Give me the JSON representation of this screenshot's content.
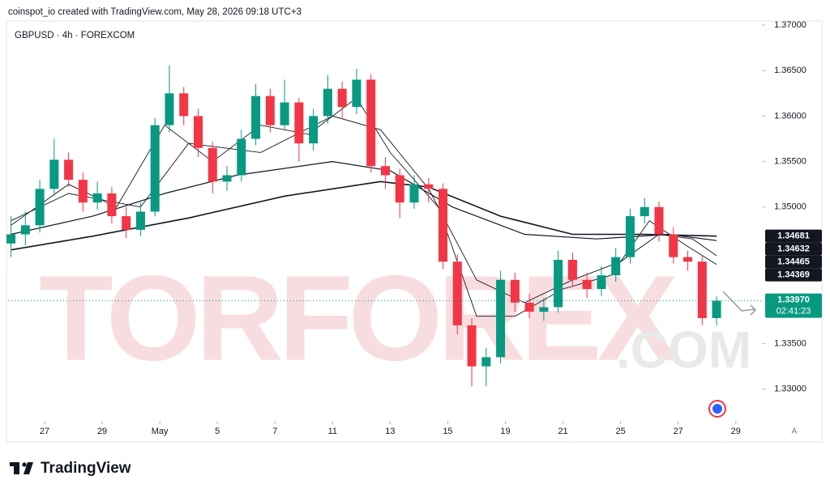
{
  "credit": "coinspot_io created with TradingView.com, May 28, 2026 09:18 UTC+3",
  "watermark": [
    "TORFOREX",
    ".COM"
  ],
  "brand": "TradingView",
  "auto_button": "A",
  "chart_data": {
    "type": "candlestick",
    "title": "GBPUSD · 4h · FOREXCOM",
    "up_color": "#089981",
    "down_color": "#f23645",
    "x": [
      -7,
      -4,
      -1,
      2,
      5,
      8,
      11,
      14,
      17,
      20,
      23,
      26,
      29,
      32,
      35,
      38,
      41,
      44,
      47,
      50,
      53,
      56,
      59,
      62,
      65,
      68,
      71,
      74,
      77,
      80,
      83,
      86,
      89,
      92,
      95,
      98,
      101,
      104,
      107,
      110,
      113,
      116,
      119,
      122,
      125,
      128,
      131,
      134,
      137,
      140
    ],
    "open": [
      1.346,
      1.347,
      1.348,
      1.352,
      1.3552,
      1.353,
      1.3505,
      1.3515,
      1.349,
      1.3475,
      1.3495,
      1.359,
      1.3625,
      1.36,
      1.3565,
      1.3528,
      1.3535,
      1.3575,
      1.3622,
      1.359,
      1.3615,
      1.357,
      1.36,
      1.363,
      1.361,
      1.364,
      1.3545,
      1.3535,
      1.3505,
      1.3525,
      1.352,
      1.344,
      1.337,
      1.3325,
      1.3335,
      1.342,
      1.3395,
      1.3385,
      1.339,
      1.3442,
      1.342,
      1.341,
      1.3425,
      1.3445,
      1.349,
      1.35,
      1.347,
      1.3445,
      1.344,
      1.3378
    ],
    "high": [
      1.349,
      1.3495,
      1.353,
      1.3575,
      1.356,
      1.3538,
      1.3528,
      1.3522,
      1.35,
      1.3505,
      1.3598,
      1.3656,
      1.3632,
      1.3608,
      1.3572,
      1.3545,
      1.3585,
      1.3635,
      1.363,
      1.364,
      1.362,
      1.3608,
      1.3645,
      1.3638,
      1.3652,
      1.3646,
      1.3555,
      1.3542,
      1.3535,
      1.3532,
      1.3526,
      1.3448,
      1.3378,
      1.3345,
      1.343,
      1.3428,
      1.3405,
      1.34,
      1.3452,
      1.345,
      1.3428,
      1.3435,
      1.3455,
      1.3498,
      1.351,
      1.3506,
      1.3478,
      1.3452,
      1.3446,
      1.3402
    ],
    "low": [
      1.3445,
      1.3458,
      1.3472,
      1.3512,
      1.3522,
      1.3495,
      1.3497,
      1.3482,
      1.3466,
      1.3468,
      1.349,
      1.3582,
      1.359,
      1.3555,
      1.3515,
      1.3518,
      1.3528,
      1.3568,
      1.3582,
      1.3584,
      1.355,
      1.3562,
      1.3592,
      1.3598,
      1.3602,
      1.3538,
      1.352,
      1.3488,
      1.3498,
      1.3505,
      1.3432,
      1.336,
      1.3303,
      1.3303,
      1.3328,
      1.3385,
      1.3378,
      1.3375,
      1.3384,
      1.3412,
      1.34,
      1.3402,
      1.3418,
      1.3438,
      1.3482,
      1.3462,
      1.3438,
      1.343,
      1.337,
      1.337
    ],
    "close": [
      1.347,
      1.348,
      1.352,
      1.3552,
      1.353,
      1.3505,
      1.3515,
      1.349,
      1.3475,
      1.3495,
      1.359,
      1.3625,
      1.36,
      1.3565,
      1.3528,
      1.3535,
      1.3575,
      1.3622,
      1.359,
      1.3615,
      1.357,
      1.36,
      1.363,
      1.361,
      1.364,
      1.3545,
      1.3535,
      1.3505,
      1.3525,
      1.352,
      1.344,
      1.337,
      1.3325,
      1.3335,
      1.342,
      1.3395,
      1.3385,
      1.339,
      1.3442,
      1.342,
      1.341,
      1.3425,
      1.3445,
      1.349,
      1.35,
      1.347,
      1.3445,
      1.344,
      1.3378,
      1.3397
    ],
    "series": [
      {
        "color": "#131722",
        "x": [
          -7,
          10,
          30,
          50,
          70,
          80,
          95,
          110,
          125,
          140
        ],
        "values": [
          1.3453,
          1.3468,
          1.3488,
          1.3512,
          1.3528,
          1.3522,
          1.349,
          1.347,
          1.347,
          1.34681
        ]
      },
      {
        "color": "#131722",
        "x": [
          -7,
          10,
          25,
          40,
          60,
          72,
          85,
          100,
          115,
          130,
          140
        ],
        "values": [
          1.347,
          1.349,
          1.3515,
          1.3535,
          1.355,
          1.354,
          1.35,
          1.347,
          1.3465,
          1.347,
          1.34632
        ]
      },
      {
        "color": "#131722",
        "x": [
          -7,
          5,
          20,
          30,
          45,
          60,
          70,
          80,
          90,
          100,
          110,
          120,
          128,
          135,
          140
        ],
        "values": [
          1.3485,
          1.3515,
          1.35,
          1.357,
          1.356,
          1.36,
          1.3585,
          1.352,
          1.342,
          1.3395,
          1.342,
          1.344,
          1.347,
          1.3465,
          1.34465
        ]
      },
      {
        "color": "#131722",
        "x": [
          -7,
          5,
          15,
          25,
          35,
          45,
          55,
          65,
          72,
          82,
          90,
          98,
          108,
          118,
          126,
          133,
          140
        ],
        "values": [
          1.348,
          1.3525,
          1.35,
          1.359,
          1.355,
          1.359,
          1.358,
          1.362,
          1.356,
          1.35,
          1.338,
          1.338,
          1.341,
          1.3425,
          1.3485,
          1.346,
          1.34369
        ]
      }
    ],
    "price_labels": [
      {
        "value": 1.34681,
        "label": "1.34681"
      },
      {
        "value": 1.34632,
        "label": "1.34632"
      },
      {
        "value": 1.34465,
        "label": "1.34465"
      },
      {
        "value": 1.34369,
        "label": "1.34369"
      }
    ],
    "current_price": {
      "value": 1.3397,
      "label": "1.33970"
    },
    "countdown": "02:41:23",
    "ylim": [
      1.3265,
      1.3708
    ],
    "yticks": [
      {
        "value": 1.37,
        "label": "1.37000"
      },
      {
        "value": 1.365,
        "label": "1.36500"
      },
      {
        "value": 1.36,
        "label": "1.36000"
      },
      {
        "value": 1.355,
        "label": "1.35500"
      },
      {
        "value": 1.35,
        "label": "1.35000"
      },
      {
        "value": 1.335,
        "label": "1.33500"
      },
      {
        "value": 1.33,
        "label": "1.33000"
      }
    ],
    "xlim": [
      -7.6,
      148.6
    ],
    "xticks": [
      {
        "value": 0,
        "label": "27"
      },
      {
        "value": 12,
        "label": "29"
      },
      {
        "value": 24,
        "label": "May"
      },
      {
        "value": 36,
        "label": "5"
      },
      {
        "value": 48,
        "label": "7"
      },
      {
        "value": 60,
        "label": "11"
      },
      {
        "value": 72,
        "label": "13"
      },
      {
        "value": 84,
        "label": "15"
      },
      {
        "value": 96,
        "label": "19"
      },
      {
        "value": 108,
        "label": "21"
      },
      {
        "value": 120,
        "label": "25"
      },
      {
        "value": 132,
        "label": "27"
      },
      {
        "value": 144,
        "label": "29"
      }
    ]
  }
}
